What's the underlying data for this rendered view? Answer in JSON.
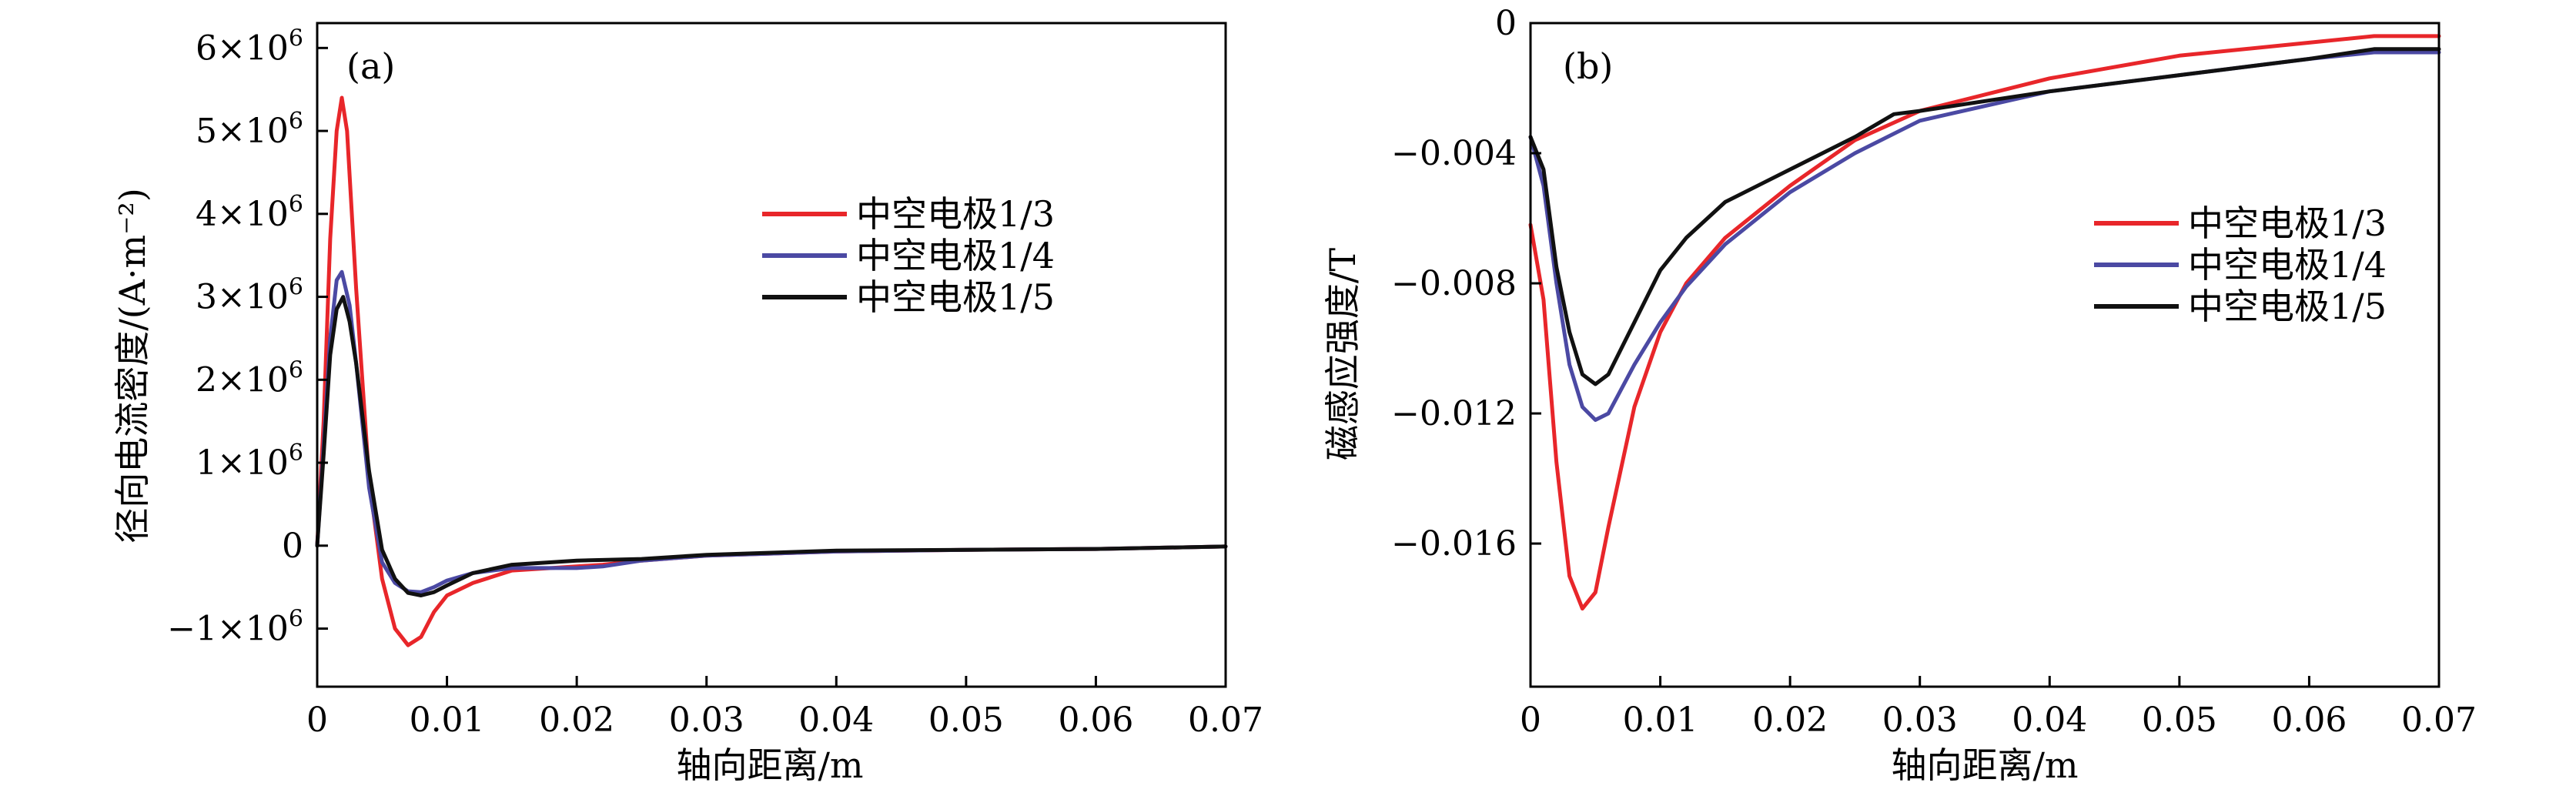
{
  "chart_data": [
    {
      "type": "line",
      "panel_label": "(a)",
      "xlabel": "轴向距离/m",
      "ylabel": "径向电流密度/(A·m⁻²)",
      "xlim": [
        0,
        0.07
      ],
      "ylim": [
        -1700000,
        6300000
      ],
      "x_ticks": [
        0,
        0.01,
        0.02,
        0.03,
        0.04,
        0.05,
        0.06,
        0.07
      ],
      "x_tick_labels": [
        "0",
        "0.01",
        "0.02",
        "0.03",
        "0.04",
        "0.05",
        "0.06",
        "0.07"
      ],
      "y_ticks": [
        -1000000,
        0,
        1000000,
        2000000,
        3000000,
        4000000,
        5000000,
        6000000
      ],
      "y_tick_labels": [
        {
          "mantissa": "−1×10",
          "exp": "6"
        },
        {
          "mantissa": "0",
          "exp": ""
        },
        {
          "mantissa": "1×10",
          "exp": "6"
        },
        {
          "mantissa": "2×10",
          "exp": "6"
        },
        {
          "mantissa": "3×10",
          "exp": "6"
        },
        {
          "mantissa": "4×10",
          "exp": "6"
        },
        {
          "mantissa": "5×10",
          "exp": "6"
        },
        {
          "mantissa": "6×10",
          "exp": "6"
        }
      ],
      "legend_position": "center-right",
      "series": [
        {
          "name": "中空电极1/3",
          "color": "#e8262a",
          "points": [
            [
              0,
              0
            ],
            [
              0.0005,
              1500000
            ],
            [
              0.001,
              3700000
            ],
            [
              0.0015,
              5000000
            ],
            [
              0.0019,
              5400000
            ],
            [
              0.0023,
              5000000
            ],
            [
              0.003,
              3100000
            ],
            [
              0.004,
              800000
            ],
            [
              0.005,
              -400000
            ],
            [
              0.006,
              -1000000
            ],
            [
              0.007,
              -1200000
            ],
            [
              0.008,
              -1100000
            ],
            [
              0.009,
              -800000
            ],
            [
              0.01,
              -600000
            ],
            [
              0.012,
              -450000
            ],
            [
              0.015,
              -300000
            ],
            [
              0.02,
              -250000
            ],
            [
              0.022,
              -230000
            ],
            [
              0.025,
              -180000
            ],
            [
              0.03,
              -120000
            ],
            [
              0.04,
              -70000
            ],
            [
              0.05,
              -50000
            ],
            [
              0.06,
              -40000
            ],
            [
              0.07,
              -10000
            ]
          ]
        },
        {
          "name": "中空电极1/4",
          "color": "#4b49a3",
          "points": [
            [
              0,
              0
            ],
            [
              0.0005,
              1200000
            ],
            [
              0.001,
              2500000
            ],
            [
              0.0015,
              3200000
            ],
            [
              0.0019,
              3300000
            ],
            [
              0.0025,
              2900000
            ],
            [
              0.003,
              2200000
            ],
            [
              0.004,
              700000
            ],
            [
              0.005,
              -200000
            ],
            [
              0.006,
              -450000
            ],
            [
              0.007,
              -550000
            ],
            [
              0.008,
              -560000
            ],
            [
              0.009,
              -500000
            ],
            [
              0.01,
              -420000
            ],
            [
              0.012,
              -330000
            ],
            [
              0.015,
              -270000
            ],
            [
              0.02,
              -270000
            ],
            [
              0.022,
              -250000
            ],
            [
              0.025,
              -180000
            ],
            [
              0.03,
              -120000
            ],
            [
              0.04,
              -70000
            ],
            [
              0.05,
              -50000
            ],
            [
              0.06,
              -40000
            ],
            [
              0.07,
              -10000
            ]
          ]
        },
        {
          "name": "中空电极1/5",
          "color": "#111111",
          "points": [
            [
              0,
              0
            ],
            [
              0.0005,
              1100000
            ],
            [
              0.001,
              2300000
            ],
            [
              0.0015,
              2850000
            ],
            [
              0.002,
              3000000
            ],
            [
              0.0025,
              2700000
            ],
            [
              0.003,
              2200000
            ],
            [
              0.004,
              900000
            ],
            [
              0.005,
              -50000
            ],
            [
              0.006,
              -400000
            ],
            [
              0.007,
              -570000
            ],
            [
              0.008,
              -600000
            ],
            [
              0.009,
              -560000
            ],
            [
              0.01,
              -480000
            ],
            [
              0.012,
              -330000
            ],
            [
              0.015,
              -230000
            ],
            [
              0.02,
              -180000
            ],
            [
              0.025,
              -160000
            ],
            [
              0.03,
              -110000
            ],
            [
              0.04,
              -60000
            ],
            [
              0.05,
              -50000
            ],
            [
              0.06,
              -40000
            ],
            [
              0.07,
              -10000
            ]
          ]
        }
      ]
    },
    {
      "type": "line",
      "panel_label": "(b)",
      "xlabel": "轴向距离/m",
      "ylabel": "磁感应强度/T",
      "xlim": [
        0,
        0.07
      ],
      "ylim": [
        -0.0204,
        0
      ],
      "x_ticks": [
        0,
        0.01,
        0.02,
        0.03,
        0.04,
        0.05,
        0.06,
        0.07
      ],
      "x_tick_labels": [
        "0",
        "0.01",
        "0.02",
        "0.03",
        "0.04",
        "0.05",
        "0.06",
        "0.07"
      ],
      "y_ticks": [
        0,
        -0.004,
        -0.008,
        -0.012,
        -0.016
      ],
      "y_tick_labels": [
        "0",
        "−0.004",
        "−0.008",
        "−0.012",
        "−0.016"
      ],
      "legend_position": "center-right",
      "series": [
        {
          "name": "中空电极1/3",
          "color": "#e8262a",
          "points": [
            [
              0,
              -0.0062
            ],
            [
              0.001,
              -0.0085
            ],
            [
              0.002,
              -0.0135
            ],
            [
              0.003,
              -0.017
            ],
            [
              0.004,
              -0.018
            ],
            [
              0.005,
              -0.0175
            ],
            [
              0.006,
              -0.0155
            ],
            [
              0.008,
              -0.0118
            ],
            [
              0.01,
              -0.0095
            ],
            [
              0.012,
              -0.008
            ],
            [
              0.015,
              -0.0066
            ],
            [
              0.02,
              -0.005
            ],
            [
              0.025,
              -0.0036
            ],
            [
              0.03,
              -0.0027
            ],
            [
              0.04,
              -0.0017
            ],
            [
              0.05,
              -0.001
            ],
            [
              0.06,
              -0.0006
            ],
            [
              0.065,
              -0.0004
            ],
            [
              0.07,
              -0.0004
            ]
          ]
        },
        {
          "name": "中空电极1/4",
          "color": "#4b49a3",
          "points": [
            [
              0,
              -0.0035
            ],
            [
              0.001,
              -0.005
            ],
            [
              0.002,
              -0.008
            ],
            [
              0.003,
              -0.0105
            ],
            [
              0.004,
              -0.0118
            ],
            [
              0.005,
              -0.0122
            ],
            [
              0.006,
              -0.012
            ],
            [
              0.008,
              -0.0105
            ],
            [
              0.01,
              -0.0092
            ],
            [
              0.012,
              -0.0081
            ],
            [
              0.015,
              -0.0068
            ],
            [
              0.02,
              -0.0052
            ],
            [
              0.025,
              -0.004
            ],
            [
              0.03,
              -0.003
            ],
            [
              0.04,
              -0.0021
            ],
            [
              0.05,
              -0.0016
            ],
            [
              0.06,
              -0.0011
            ],
            [
              0.065,
              -0.0009
            ],
            [
              0.07,
              -0.0009
            ]
          ]
        },
        {
          "name": "中空电极1/5",
          "color": "#111111",
          "points": [
            [
              0,
              -0.0035
            ],
            [
              0.001,
              -0.0045
            ],
            [
              0.002,
              -0.0075
            ],
            [
              0.003,
              -0.0095
            ],
            [
              0.004,
              -0.0108
            ],
            [
              0.005,
              -0.0111
            ],
            [
              0.006,
              -0.0108
            ],
            [
              0.008,
              -0.0092
            ],
            [
              0.01,
              -0.0076
            ],
            [
              0.012,
              -0.0066
            ],
            [
              0.015,
              -0.0055
            ],
            [
              0.02,
              -0.0045
            ],
            [
              0.025,
              -0.0035
            ],
            [
              0.028,
              -0.0028
            ],
            [
              0.03,
              -0.0027
            ],
            [
              0.04,
              -0.0021
            ],
            [
              0.05,
              -0.0016
            ],
            [
              0.06,
              -0.0011
            ],
            [
              0.065,
              -0.0008
            ],
            [
              0.07,
              -0.0008
            ]
          ]
        }
      ]
    }
  ]
}
